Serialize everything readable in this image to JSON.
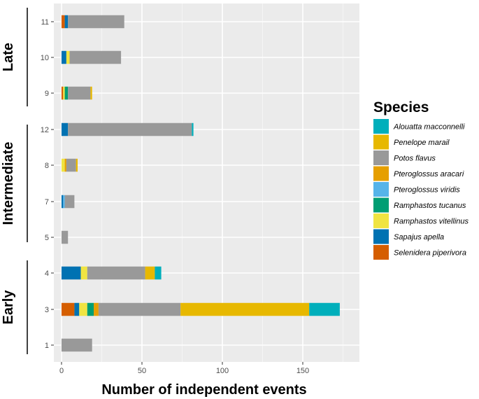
{
  "chart_data": {
    "type": "bar",
    "orientation": "horizontal",
    "stacked": true,
    "xlabel": "Number of independent events",
    "ylabel": "",
    "xlim": [
      0,
      175
    ],
    "x_ticks": [
      0,
      50,
      100,
      150
    ],
    "grid": true,
    "legend": {
      "title": "Species",
      "placement": "right",
      "items": [
        {
          "name": "Alouatta macconnelli",
          "color": "#00AFBB"
        },
        {
          "name": "Penelope marail",
          "color": "#E7B800"
        },
        {
          "name": "Potos flavus",
          "color": "#999999"
        },
        {
          "name": "Pteroglossus aracari",
          "color": "#E69F00"
        },
        {
          "name": "Pteroglossus viridis",
          "color": "#56B4E9"
        },
        {
          "name": "Ramphastos tucanus",
          "color": "#009E73"
        },
        {
          "name": "Ramphastos vitellinus",
          "color": "#F0E442"
        },
        {
          "name": "Sapajus apella",
          "color": "#0072B2"
        },
        {
          "name": "Selenidera piperivora",
          "color": "#D55E00"
        }
      ]
    },
    "stack_order": [
      "Selenidera piperivora",
      "Sapajus apella",
      "Ramphastos vitellinus",
      "Ramphastos tucanus",
      "Pteroglossus viridis",
      "Pteroglossus aracari",
      "Potos flavus",
      "Penelope marail",
      "Alouatta macconnelli"
    ],
    "groups": [
      {
        "label": "Late",
        "categories": [
          "11",
          "10",
          "9"
        ]
      },
      {
        "label": "Intermediate",
        "categories": [
          "12",
          "8",
          "7",
          "5"
        ]
      },
      {
        "label": "Early",
        "categories": [
          "4",
          "3",
          "1"
        ]
      }
    ],
    "categories": [
      "11",
      "10",
      "9",
      "12",
      "8",
      "7",
      "5",
      "4",
      "3",
      "1"
    ],
    "series": [
      {
        "name": "Selenidera piperivora",
        "values": [
          2,
          0,
          1,
          0,
          0,
          0,
          0,
          0,
          8,
          0
        ]
      },
      {
        "name": "Sapajus apella",
        "values": [
          2,
          3,
          0,
          4,
          0,
          1,
          0,
          12,
          3,
          0
        ]
      },
      {
        "name": "Ramphastos vitellinus",
        "values": [
          0,
          2,
          1,
          0,
          2,
          0,
          0,
          4,
          5,
          0
        ]
      },
      {
        "name": "Ramphastos tucanus",
        "values": [
          0,
          0,
          2,
          0,
          0,
          0,
          0,
          0,
          4,
          0
        ]
      },
      {
        "name": "Pteroglossus viridis",
        "values": [
          0,
          0,
          0,
          0,
          0,
          1,
          0,
          0,
          0,
          0
        ]
      },
      {
        "name": "Pteroglossus aracari",
        "values": [
          0,
          0,
          0,
          0,
          1,
          0,
          0,
          0,
          3,
          0
        ]
      },
      {
        "name": "Potos flavus",
        "values": [
          35,
          32,
          14,
          77,
          6,
          6,
          4,
          36,
          51,
          19
        ]
      },
      {
        "name": "Penelope marail",
        "values": [
          0,
          0,
          1,
          0,
          1,
          0,
          0,
          6,
          80,
          0
        ]
      },
      {
        "name": "Alouatta macconnelli",
        "values": [
          0,
          0,
          0,
          1,
          0,
          0,
          0,
          4,
          19,
          0
        ]
      }
    ]
  }
}
